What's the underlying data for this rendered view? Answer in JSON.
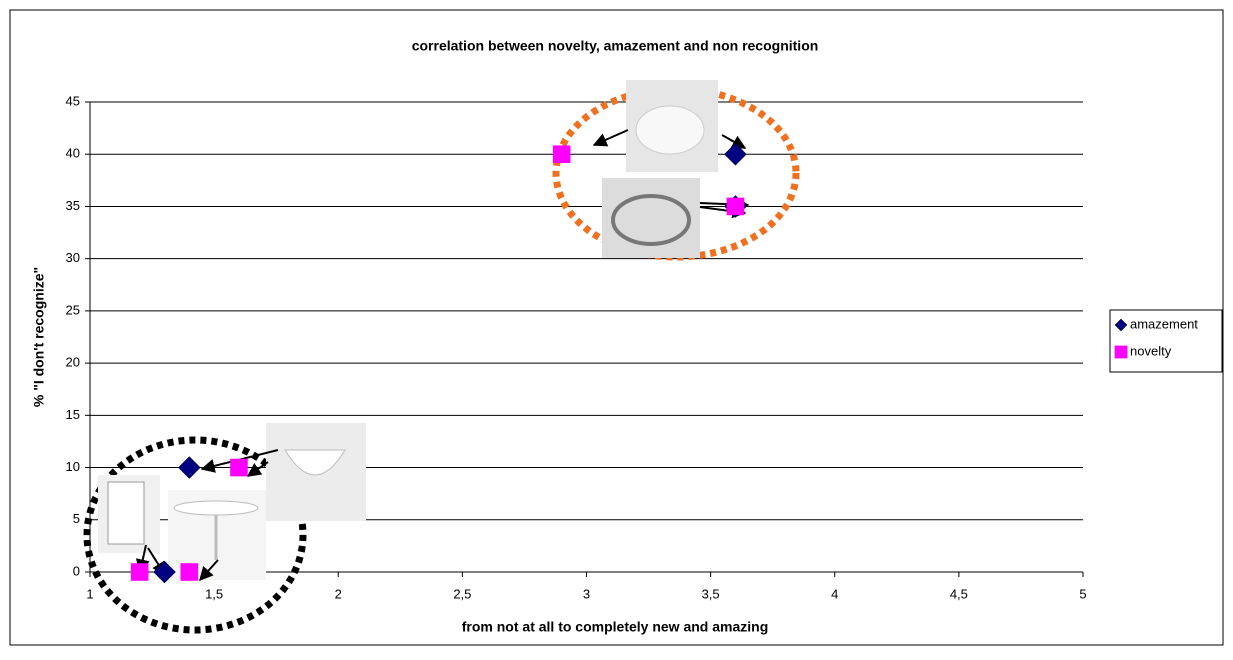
{
  "chart_data": {
    "type": "scatter",
    "title": "correlation between novelty, amazement and non recognition",
    "x_label": "from not at all to completely new and amazing",
    "y_label": "% \"I don't recognize\"",
    "xlim": [
      1,
      5
    ],
    "xticks": [
      1,
      {
        "value": 1.5,
        "label": "1,5"
      },
      2,
      {
        "value": 2.5,
        "label": "2,5"
      },
      3,
      {
        "value": 3.5,
        "label": "3,5"
      },
      4,
      {
        "value": 4.5,
        "label": "4,5"
      },
      5
    ],
    "ylim": [
      0,
      45
    ],
    "yticks": [
      0,
      5,
      10,
      15,
      20,
      25,
      30,
      35,
      40,
      45
    ],
    "grid": true,
    "series": [
      {
        "name": "amazement",
        "color": "#000080",
        "marker": "diamond",
        "x": [
          3.6,
          3.6,
          1.4,
          1.3
        ],
        "y": [
          40,
          35,
          10,
          0
        ]
      },
      {
        "name": "novelty",
        "color": "#ff00ff",
        "marker": "square",
        "x": [
          2.9,
          3.6,
          1.6,
          1.2,
          1.4
        ],
        "y": [
          40,
          35,
          10,
          0,
          0
        ]
      }
    ]
  }
}
